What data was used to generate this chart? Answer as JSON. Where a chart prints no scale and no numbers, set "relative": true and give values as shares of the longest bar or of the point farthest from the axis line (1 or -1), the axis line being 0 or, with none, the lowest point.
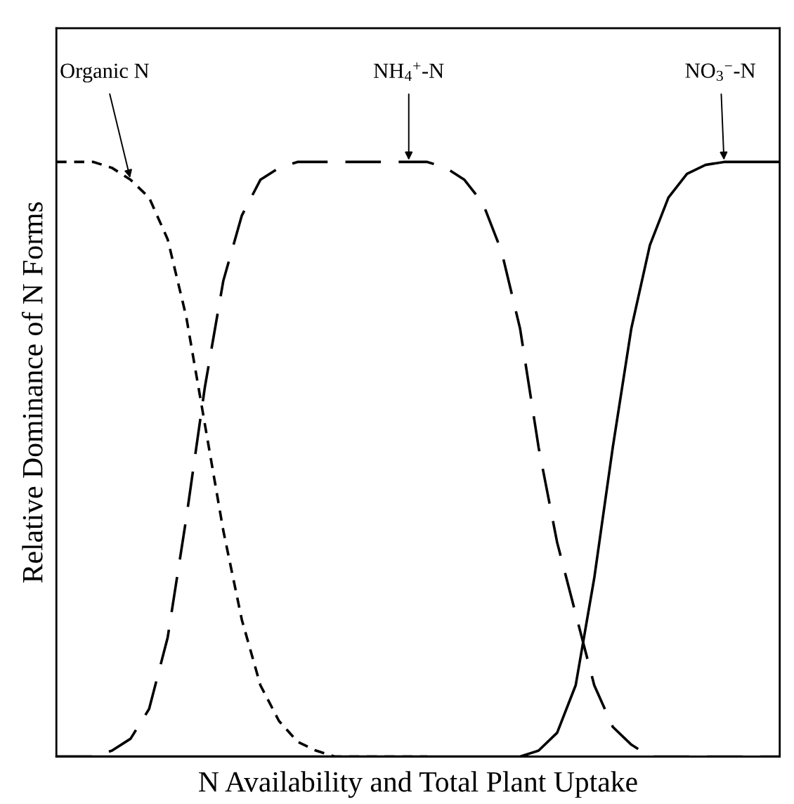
{
  "chart_data": {
    "type": "line",
    "relative": true,
    "xlabel": "N Availability and Total Plant Uptake",
    "ylabel": "Relative Dominance of N Forms",
    "legend": false,
    "marker": "none",
    "categories": [
      null,
      null,
      null,
      null,
      null,
      null,
      null,
      null,
      null,
      null,
      null,
      null,
      null,
      null,
      null,
      null,
      null,
      null,
      null,
      null,
      null,
      null,
      null,
      null,
      null,
      null,
      null,
      null,
      null,
      null,
      null,
      null,
      null,
      null,
      null,
      null,
      null,
      null,
      null,
      null
    ],
    "series": [
      {
        "name": "Organic N",
        "color": "#000000",
        "line_style": "dotted",
        "values": [
          1,
          1,
          1,
          0.99,
          0.97,
          0.94,
          0.87,
          0.74,
          0.56,
          0.38,
          0.23,
          0.12,
          0.06,
          0.025,
          0.01,
          0,
          0,
          0,
          0,
          0,
          0,
          null,
          null,
          null,
          null,
          null,
          null,
          null,
          null,
          null,
          null,
          null,
          null,
          null,
          null,
          null,
          null,
          null,
          null,
          null
        ]
      },
      {
        "name": "NH$_{4}$$^{+}$-N",
        "color": "#000000",
        "line_style": "dashed",
        "values": [
          0,
          0,
          0,
          0.01,
          0.03,
          0.08,
          0.2,
          0.4,
          0.62,
          0.8,
          0.91,
          0.97,
          0.99,
          1,
          1,
          1,
          1,
          1,
          1,
          1,
          1,
          0.99,
          0.97,
          0.93,
          0.85,
          0.72,
          0.52,
          0.36,
          0.24,
          0.12,
          0.05,
          0.02,
          0,
          0,
          0,
          0,
          0,
          0,
          0,
          0
        ]
      },
      {
        "name": "NO$_{3}$$^{−}$-N",
        "color": "#000000",
        "line_style": "solid",
        "values": [
          0,
          0,
          0,
          0,
          0,
          0,
          0,
          0,
          0,
          0,
          0,
          0,
          0,
          0,
          0,
          0,
          0,
          0,
          0,
          0,
          0,
          0,
          0,
          0,
          0,
          0,
          0.01,
          0.04,
          0.12,
          0.3,
          0.52,
          0.72,
          0.86,
          0.94,
          0.98,
          0.995,
          1,
          1,
          1,
          1
        ]
      }
    ]
  }
}
